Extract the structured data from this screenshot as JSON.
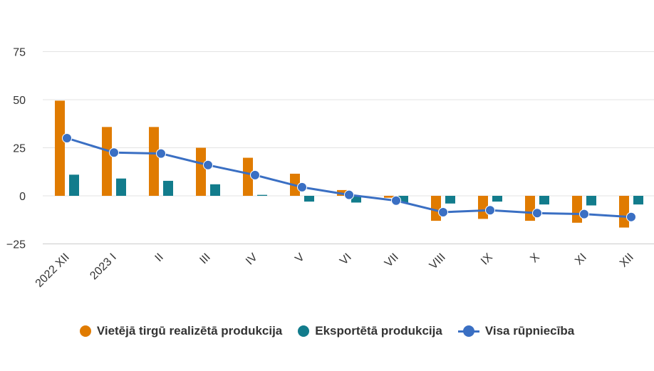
{
  "chart_data": {
    "type": "bar",
    "categories": [
      "2022 XII",
      "2023 I",
      "II",
      "III",
      "IV",
      "V",
      "VI",
      "VII",
      "VIII",
      "IX",
      "X",
      "XI",
      "XII"
    ],
    "series": [
      {
        "name": "Vietējā tirgū realizētā produkcija",
        "type": "bar",
        "color": "#e07b00",
        "values": [
          49.5,
          35.8,
          35.8,
          25.0,
          19.8,
          11.5,
          3.0,
          -1.0,
          -13.0,
          -12.0,
          -13.0,
          -14.0,
          -16.5
        ]
      },
      {
        "name": "Eksportētā produkcija",
        "type": "bar",
        "color": "#127c8c",
        "values": [
          11.0,
          9.0,
          7.8,
          6.0,
          0.5,
          -3.0,
          -3.5,
          -3.5,
          -4.0,
          -3.0,
          -4.5,
          -5.0,
          -4.5
        ]
      },
      {
        "name": "Visa rūpniecība",
        "type": "line",
        "color": "#3a6fc3",
        "values": [
          30.0,
          22.5,
          22.0,
          16.0,
          10.8,
          4.5,
          0.5,
          -2.5,
          -8.5,
          -7.5,
          -9.0,
          -9.5,
          -11.0
        ]
      }
    ],
    "yticks": [
      -25,
      0,
      25,
      50,
      75
    ],
    "ylim": [
      -25,
      75
    ],
    "grid": true,
    "legend_position": "bottom"
  }
}
